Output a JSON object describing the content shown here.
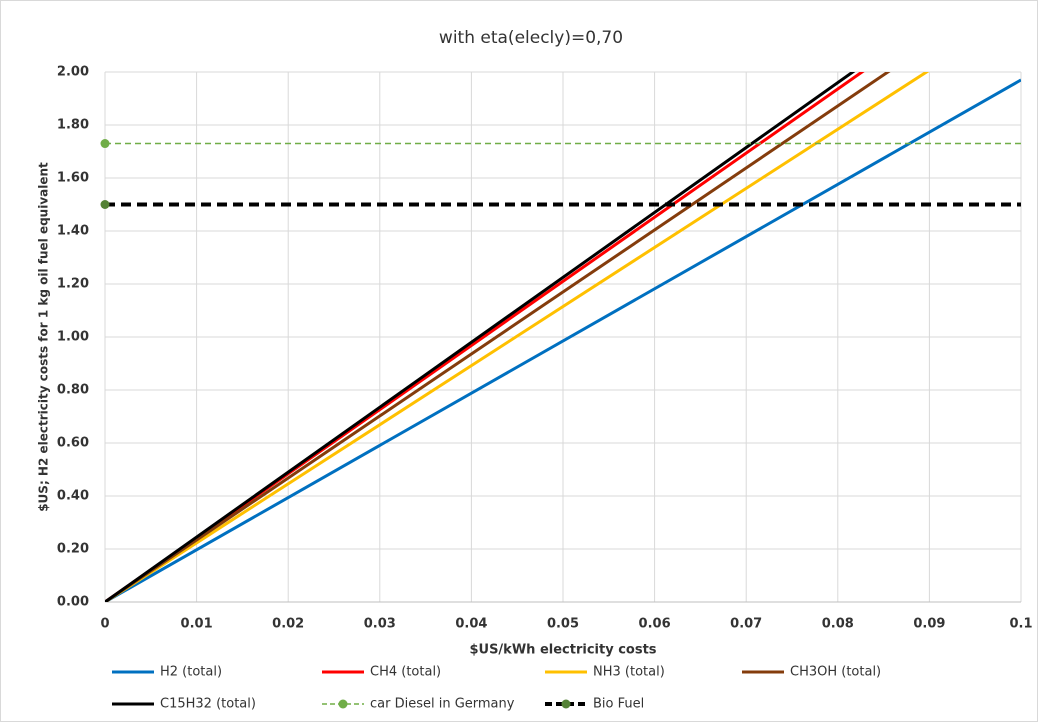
{
  "chart_data": {
    "type": "line",
    "title": "with eta(elecly)=0,70",
    "x_label": "$US/kWh electricity costs",
    "y_label": "$US; H2 electricity costs for  1 kg oil fuel equivalent",
    "x": [
      0,
      0.1
    ],
    "series": [
      {
        "name": "H2 (total)",
        "color": "#0070c0",
        "values": [
          0,
          1.97
        ]
      },
      {
        "name": "CH4 (total)",
        "color": "#ff0000",
        "values": [
          0,
          2.42
        ]
      },
      {
        "name": "NH3 (total)",
        "color": "#ffc000",
        "values": [
          0,
          2.23
        ]
      },
      {
        "name": "CH3OH (total)",
        "color": "#843c0c",
        "values": [
          0,
          2.34
        ]
      },
      {
        "name": "C15H32 (total)",
        "color": "#000000",
        "values": [
          0,
          2.45
        ]
      },
      {
        "name": "car Diesel in Germany",
        "color": "#70ad47",
        "dashed": true,
        "marker_color": "#70ad47",
        "values": [
          1.73,
          1.73
        ]
      },
      {
        "name": "Bio Fuel",
        "color": "#000000",
        "dashed": true,
        "marker_color": "#548235",
        "values": [
          1.5,
          1.5
        ]
      }
    ],
    "xlim": [
      0,
      0.1
    ],
    "xticks": [
      0,
      0.01,
      0.02,
      0.03,
      0.04,
      0.05,
      0.06,
      0.07,
      0.08,
      0.09,
      0.1
    ],
    "ylim": [
      0,
      2
    ],
    "yticks": [
      {
        "value": 0,
        "label": "0.00"
      },
      {
        "value": 0.2,
        "label": "0.20"
      },
      {
        "value": 0.4,
        "label": "0.40"
      },
      {
        "value": 0.6,
        "label": "0.60"
      },
      {
        "value": 0.8,
        "label": "0.80"
      },
      {
        "value": 1,
        "label": "1.00"
      },
      {
        "value": 1.2,
        "label": "1.20"
      },
      {
        "value": 1.4,
        "label": "1.40"
      },
      {
        "value": 1.6,
        "label": "1.60"
      },
      {
        "value": 1.8,
        "label": "1.80"
      },
      {
        "value": 2,
        "label": "2.00"
      }
    ],
    "grid": true
  }
}
